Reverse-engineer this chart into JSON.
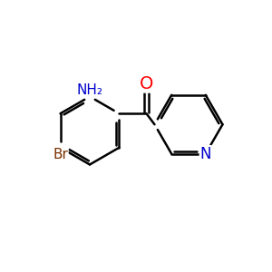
{
  "background": "#ffffff",
  "bond_color": "#000000",
  "bond_width": 1.8,
  "atom_colors": {
    "O": "#ff0000",
    "N": "#0000cc",
    "Br": "#7a3000",
    "C": "#000000"
  },
  "font_size_large": 14,
  "font_size_medium": 12,
  "font_size_small": 11
}
